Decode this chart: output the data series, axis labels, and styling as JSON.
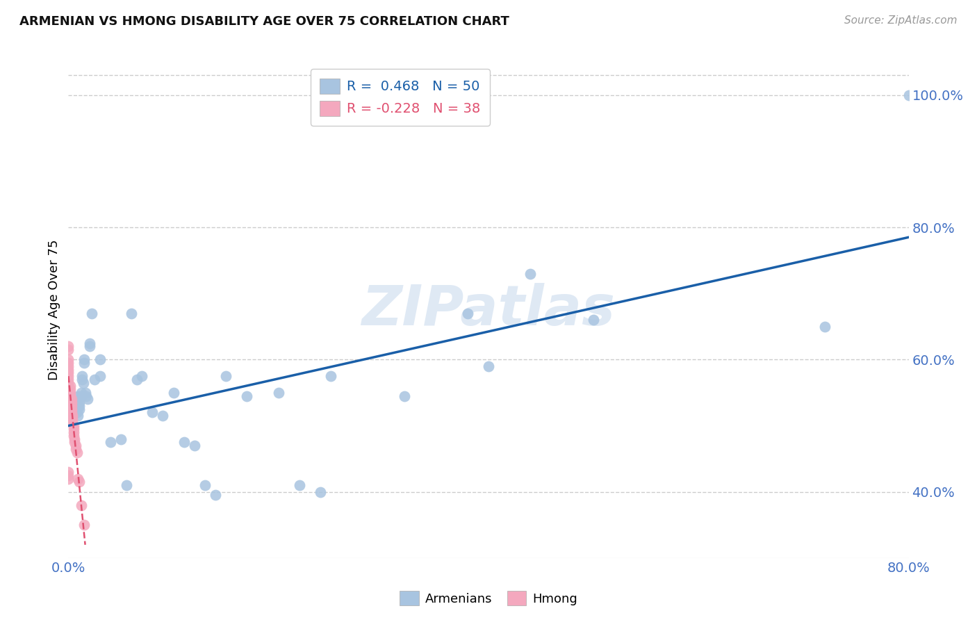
{
  "title": "ARMENIAN VS HMONG DISABILITY AGE OVER 75 CORRELATION CHART",
  "source": "Source: ZipAtlas.com",
  "xlabel_color": "#4472c4",
  "ylabel": "Disability Age Over 75",
  "xmin": 0.0,
  "xmax": 0.8,
  "ymin": 0.3,
  "ymax": 1.05,
  "yticks": [
    0.4,
    0.6,
    0.8,
    1.0
  ],
  "xticks": [
    0.0,
    0.2,
    0.4,
    0.6,
    0.8
  ],
  "ytick_labels": [
    "40.0%",
    "60.0%",
    "80.0%",
    "100.0%"
  ],
  "armenian_color": "#a8c4e0",
  "armenian_line_color": "#1a5fa8",
  "hmong_color": "#f4a8be",
  "hmong_line_color": "#e05070",
  "armenian_R": 0.468,
  "armenian_N": 50,
  "hmong_R": -0.228,
  "hmong_N": 38,
  "watermark": "ZIPatlas",
  "armenian_x": [
    0.008,
    0.008,
    0.008,
    0.009,
    0.009,
    0.01,
    0.01,
    0.01,
    0.012,
    0.012,
    0.013,
    0.013,
    0.014,
    0.015,
    0.015,
    0.016,
    0.017,
    0.018,
    0.02,
    0.02,
    0.022,
    0.025,
    0.03,
    0.03,
    0.04,
    0.05,
    0.055,
    0.06,
    0.065,
    0.07,
    0.08,
    0.09,
    0.1,
    0.11,
    0.12,
    0.13,
    0.14,
    0.15,
    0.17,
    0.2,
    0.22,
    0.24,
    0.25,
    0.32,
    0.38,
    0.4,
    0.44,
    0.5,
    0.72,
    0.8
  ],
  "armenian_y": [
    0.525,
    0.535,
    0.52,
    0.515,
    0.545,
    0.535,
    0.525,
    0.53,
    0.55,
    0.545,
    0.575,
    0.57,
    0.565,
    0.6,
    0.595,
    0.55,
    0.545,
    0.54,
    0.62,
    0.625,
    0.67,
    0.57,
    0.575,
    0.6,
    0.475,
    0.48,
    0.41,
    0.67,
    0.57,
    0.575,
    0.52,
    0.515,
    0.55,
    0.475,
    0.47,
    0.41,
    0.395,
    0.575,
    0.545,
    0.55,
    0.41,
    0.4,
    0.575,
    0.545,
    0.67,
    0.59,
    0.73,
    0.66,
    0.65,
    1.0
  ],
  "hmong_x": [
    0.0,
    0.0,
    0.0,
    0.0,
    0.0,
    0.0,
    0.0,
    0.0,
    0.0,
    0.0,
    0.0,
    0.0,
    0.0,
    0.002,
    0.002,
    0.002,
    0.002,
    0.003,
    0.003,
    0.003,
    0.003,
    0.003,
    0.004,
    0.004,
    0.004,
    0.005,
    0.005,
    0.005,
    0.005,
    0.006,
    0.006,
    0.007,
    0.007,
    0.008,
    0.009,
    0.01,
    0.012,
    0.015
  ],
  "hmong_y": [
    0.62,
    0.615,
    0.6,
    0.595,
    0.59,
    0.585,
    0.58,
    0.575,
    0.57,
    0.565,
    0.43,
    0.425,
    0.42,
    0.56,
    0.555,
    0.55,
    0.545,
    0.54,
    0.535,
    0.53,
    0.525,
    0.52,
    0.515,
    0.51,
    0.505,
    0.5,
    0.495,
    0.49,
    0.485,
    0.48,
    0.475,
    0.47,
    0.465,
    0.46,
    0.42,
    0.415,
    0.38,
    0.35
  ],
  "grid_color": "#cccccc",
  "background_color": "#ffffff",
  "arm_line_x0": 0.0,
  "arm_line_x1": 0.8,
  "arm_line_y0": 0.5,
  "arm_line_y1": 0.785,
  "hmong_line_x0": 0.0,
  "hmong_line_x1": 0.016,
  "hmong_line_y0": 0.575,
  "hmong_line_y1": 0.32
}
